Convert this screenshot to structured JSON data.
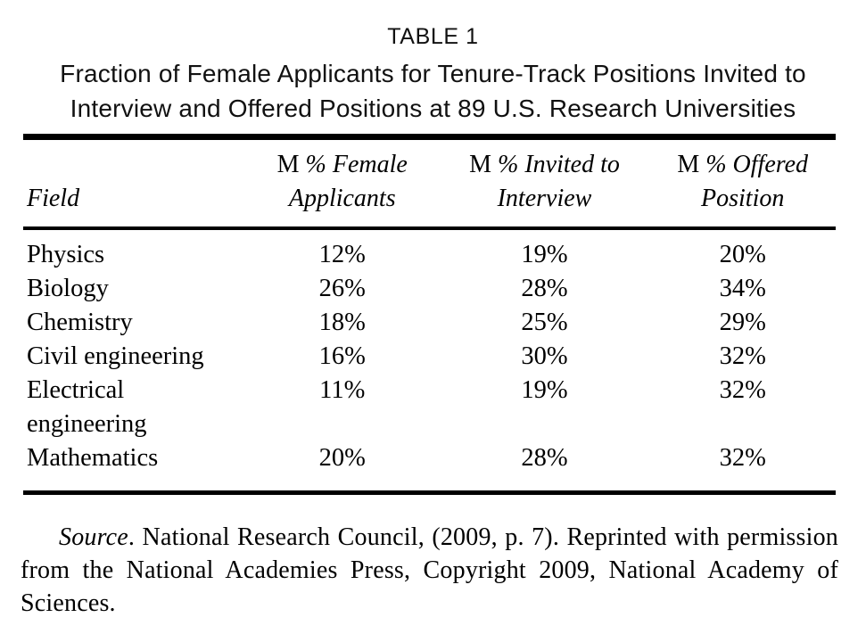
{
  "table": {
    "label": "TABLE 1",
    "title_line1": "Fraction of Female Applicants for Tenure-Track Positions Invited to",
    "title_line2": "Interview and Offered Positions at 89 U.S. Research Universities",
    "header": {
      "field": "Field",
      "female_applicants": {
        "prefix": "M",
        "line1": "% Female",
        "line2": "Applicants"
      },
      "invited_to_interview": {
        "prefix": "M",
        "line1": "% Invited to",
        "line2": "Interview"
      },
      "offered_position": {
        "prefix": "M",
        "line1": "% Offered",
        "line2": "Position"
      }
    },
    "rows": [
      {
        "field": "Physics",
        "female_applicants": "12%",
        "invited": "19%",
        "offered": "20%"
      },
      {
        "field": "Biology",
        "female_applicants": "26%",
        "invited": "28%",
        "offered": "34%"
      },
      {
        "field": "Chemistry",
        "female_applicants": "18%",
        "invited": "25%",
        "offered": "29%"
      },
      {
        "field": "Civil engineering",
        "female_applicants": "16%",
        "invited": "30%",
        "offered": "32%"
      },
      {
        "field": "Electrical",
        "field_line2": "engineering",
        "female_applicants": "11%",
        "invited": "19%",
        "offered": "32%"
      },
      {
        "field": "Mathematics",
        "female_applicants": "20%",
        "invited": "28%",
        "offered": "32%"
      }
    ]
  },
  "source_note": {
    "label": "Source",
    "text": ". National Research Council, (2009, p. 7). Reprinted with permission from the National Academies Press, Copyright 2009, National Academy of Sciences."
  }
}
